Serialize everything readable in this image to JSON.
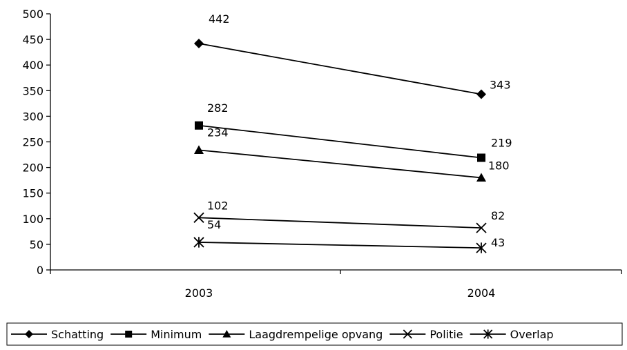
{
  "chart_data": {
    "type": "line",
    "title": "",
    "xlabel": "",
    "ylabel": "",
    "categories": [
      "2003",
      "2004"
    ],
    "ylim": [
      0,
      500
    ],
    "yticks": [
      0,
      50,
      100,
      150,
      200,
      250,
      300,
      350,
      400,
      450,
      500
    ],
    "grid": false,
    "legend_position": "bottom",
    "series": [
      {
        "name": "Schatting",
        "values": [
          442,
          343
        ],
        "marker": "diamond",
        "labels": [
          "442",
          "343"
        ]
      },
      {
        "name": "Minimum",
        "values": [
          282,
          219
        ],
        "marker": "square",
        "labels": [
          "282",
          "219"
        ]
      },
      {
        "name": "Laagdrempelige opvang",
        "values": [
          234,
          180
        ],
        "marker": "triangle",
        "labels": [
          "234",
          "180"
        ]
      },
      {
        "name": "Politie",
        "values": [
          102,
          82
        ],
        "marker": "x",
        "labels": [
          "102",
          "82"
        ]
      },
      {
        "name": "Overlap",
        "values": [
          54,
          43
        ],
        "marker": "star",
        "labels": [
          "54",
          "43"
        ]
      }
    ],
    "colors": {
      "line": "#000000",
      "background": "#ffffff"
    }
  }
}
